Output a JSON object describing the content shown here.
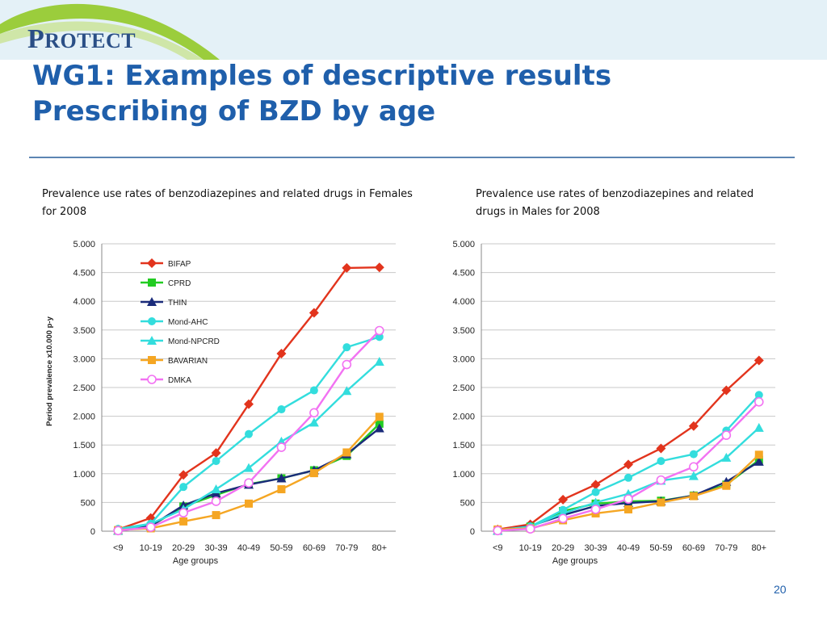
{
  "slide": {
    "logo_initial": "P",
    "logo_rest": "ROTECT",
    "title_line1": "WG1: Examples of descriptive results",
    "title_line2": "Prescribing of BZD by age",
    "caption_left": "Prevalence use rates of benzodiazepines and related drugs in Females for 2008",
    "caption_right": "Prevalence use rates of benzodiazepines and related drugs in Males for 2008",
    "page_number": "20"
  },
  "chart_data": [
    {
      "type": "line",
      "title": "",
      "xlabel": "Age groups",
      "ylabel": "Period prevalence x10.000 p-y",
      "ylim": [
        0,
        5000
      ],
      "yticks": [
        0,
        500,
        1000,
        1500,
        2000,
        2500,
        3000,
        3500,
        4000,
        4500,
        5000
      ],
      "ytick_labels": [
        "0",
        "500",
        "1.000",
        "1.500",
        "2.000",
        "2.500",
        "3.000",
        "3.500",
        "4.000",
        "4.500",
        "5.000"
      ],
      "grid": true,
      "legend": "top-left",
      "categories": [
        "<9",
        "10-19",
        "20-29",
        "30-39",
        "40-49",
        "50-59",
        "60-69",
        "70-79",
        "80+"
      ],
      "series": [
        {
          "name": "BIFAP",
          "color": "#e2341d",
          "marker": "diamond",
          "values": [
            30,
            230,
            980,
            1360,
            2210,
            3090,
            3800,
            4580,
            4590
          ]
        },
        {
          "name": "CPRD",
          "color": "#22cc22",
          "marker": "square",
          "values": [
            10,
            90,
            430,
            630,
            820,
            920,
            1060,
            1310,
            1870
          ]
        },
        {
          "name": "THIN",
          "color": "#1a2b7a",
          "marker": "triangle",
          "values": [
            10,
            90,
            450,
            660,
            810,
            920,
            1060,
            1340,
            1790
          ]
        },
        {
          "name": "Mond-AHC",
          "color": "#33dddd",
          "marker": "circle",
          "values": [
            40,
            130,
            770,
            1220,
            1690,
            2120,
            2450,
            3200,
            3380
          ]
        },
        {
          "name": "Mond-NPCRD",
          "color": "#33dddd",
          "marker": "triangle",
          "values": [
            10,
            130,
            380,
            730,
            1100,
            1560,
            1890,
            2440,
            2950
          ]
        },
        {
          "name": "BAVARIAN",
          "color": "#f5a623",
          "marker": "square",
          "values": [
            20,
            50,
            170,
            280,
            480,
            730,
            1010,
            1370,
            1990
          ]
        },
        {
          "name": "DMKA",
          "color": "#f272f2",
          "marker": "open-circle",
          "values": [
            10,
            70,
            320,
            520,
            840,
            1460,
            2060,
            2900,
            3490
          ]
        }
      ]
    },
    {
      "type": "line",
      "title": "",
      "xlabel": "Age groups",
      "ylabel": "",
      "ylim": [
        0,
        5000
      ],
      "yticks": [
        0,
        500,
        1000,
        1500,
        2000,
        2500,
        3000,
        3500,
        4000,
        4500,
        5000
      ],
      "ytick_labels": [
        "0",
        "500",
        "1.000",
        "1.500",
        "2.000",
        "2.500",
        "3.000",
        "3.500",
        "4.000",
        "4.500",
        "5.000"
      ],
      "grid": true,
      "legend": "none",
      "categories": [
        "<9",
        "10-19",
        "20-29",
        "30-39",
        "40-49",
        "50-59",
        "60-69",
        "70-79",
        "80+"
      ],
      "series": [
        {
          "name": "BIFAP",
          "color": "#e2341d",
          "marker": "diamond",
          "values": [
            30,
            120,
            550,
            810,
            1160,
            1440,
            1830,
            2450,
            2970
          ]
        },
        {
          "name": "CPRD",
          "color": "#22cc22",
          "marker": "square",
          "values": [
            10,
            80,
            350,
            480,
            520,
            530,
            620,
            810,
            1240
          ]
        },
        {
          "name": "THIN",
          "color": "#1a2b7a",
          "marker": "triangle",
          "values": [
            10,
            90,
            280,
            440,
            490,
            520,
            620,
            860,
            1210
          ]
        },
        {
          "name": "Mond-AHC",
          "color": "#33dddd",
          "marker": "circle",
          "values": [
            20,
            80,
            370,
            680,
            930,
            1220,
            1340,
            1750,
            2370
          ]
        },
        {
          "name": "Mond-NPCRD",
          "color": "#33dddd",
          "marker": "triangle",
          "values": [
            10,
            80,
            310,
            500,
            650,
            880,
            960,
            1280,
            1800
          ]
        },
        {
          "name": "BAVARIAN",
          "color": "#f5a623",
          "marker": "square",
          "values": [
            30,
            50,
            190,
            310,
            380,
            500,
            610,
            790,
            1330
          ]
        },
        {
          "name": "DMKA",
          "color": "#f272f2",
          "marker": "open-circle",
          "values": [
            10,
            40,
            220,
            380,
            560,
            890,
            1120,
            1670,
            2250
          ]
        }
      ]
    }
  ]
}
